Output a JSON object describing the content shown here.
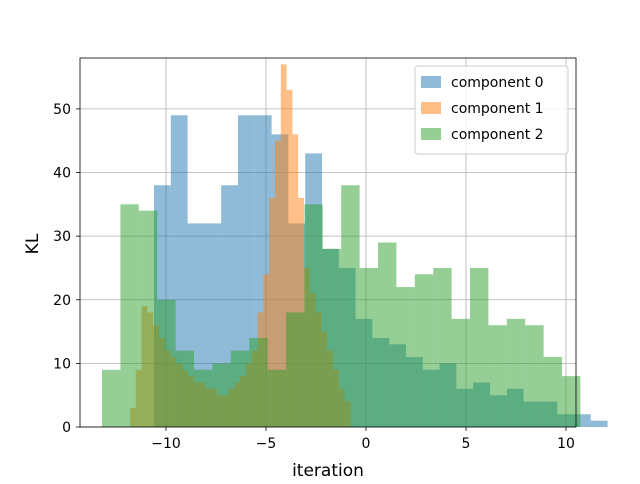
{
  "chart_data": {
    "type": "histogram",
    "xlabel": "iteration",
    "ylabel": "KL",
    "xlim": [
      -14.3,
      10.5
    ],
    "ylim": [
      0,
      58
    ],
    "xticks": [
      -10,
      -5,
      0,
      5,
      10
    ],
    "yticks": [
      0,
      10,
      20,
      30,
      40,
      50
    ],
    "grid": true,
    "legend_position": "top-right",
    "series": [
      {
        "name": "component 0",
        "color": "#1f77b4",
        "opacity": 0.5,
        "bin_start": -10.6,
        "bin_width": 0.84,
        "counts": [
          38,
          49,
          32,
          32,
          38,
          49,
          49,
          46,
          32,
          43,
          28,
          25,
          17,
          14,
          13,
          11,
          9,
          10,
          6,
          7,
          5,
          6,
          4,
          4,
          2,
          2,
          1
        ]
      },
      {
        "name": "component 1",
        "color": "#ff7f0e",
        "opacity": 0.5,
        "bin_start": -11.8,
        "bin_width": 0.29,
        "counts": [
          3,
          9,
          19,
          18,
          16,
          14,
          12,
          11,
          10,
          9,
          8,
          7,
          7,
          6,
          6,
          5,
          5,
          6,
          7,
          8,
          10,
          12,
          18,
          24,
          36,
          45,
          57,
          53,
          46,
          36,
          25,
          21,
          18,
          15,
          12,
          9,
          6,
          4
        ]
      },
      {
        "name": "component 2",
        "color": "#2ca02c",
        "opacity": 0.5,
        "bin_start": -13.2,
        "bin_width": 0.92,
        "counts": [
          9,
          35,
          34,
          20,
          12,
          9,
          10,
          12,
          14,
          9,
          18,
          35,
          28,
          38,
          25,
          29,
          22,
          24,
          25,
          17,
          25,
          16,
          17,
          16,
          11,
          8
        ]
      }
    ]
  }
}
